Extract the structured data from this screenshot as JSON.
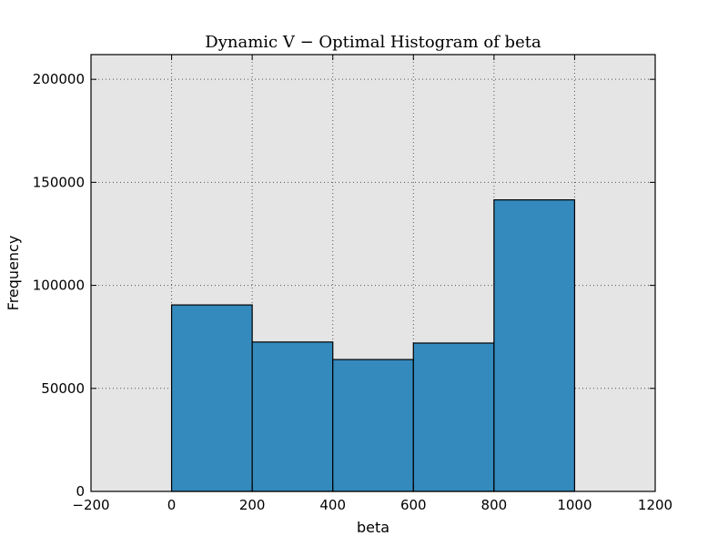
{
  "chart_data": {
    "type": "bar",
    "title": "Dynamic V − Optimal Histogram of beta",
    "xlabel": "beta",
    "ylabel": "Frequency",
    "xlim": [
      -200,
      1200
    ],
    "ylim": [
      0,
      212000
    ],
    "xticks": [
      -200,
      0,
      200,
      400,
      600,
      800,
      1000,
      1200
    ],
    "xtick_labels": [
      "−200",
      "0",
      "200",
      "400",
      "600",
      "800",
      "1000",
      "1200"
    ],
    "yticks": [
      0,
      50000,
      100000,
      150000,
      200000
    ],
    "ytick_labels": [
      "0",
      "50000",
      "100000",
      "150000",
      "200000"
    ],
    "bins": [
      [
        0,
        200
      ],
      [
        200,
        400
      ],
      [
        400,
        600
      ],
      [
        600,
        800
      ],
      [
        800,
        1000
      ]
    ],
    "values": [
      90500,
      72500,
      64000,
      72000,
      141500
    ],
    "grid": true,
    "colors": {
      "bar": "#348abd",
      "bar_edge": "#000000",
      "plot_background": "#e5e5e5",
      "grid": "#555555"
    }
  }
}
